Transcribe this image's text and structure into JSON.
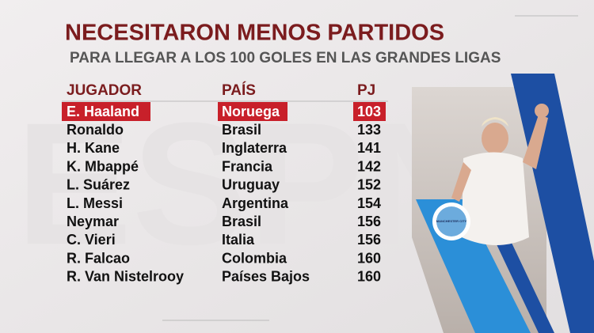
{
  "header": {
    "title": "NECESITARON MENOS PARTIDOS",
    "subtitle": "PARA LLEGAR A LOS 100 GOLES EN LAS GRANDES LIGAS"
  },
  "table": {
    "columns": [
      "JUGADOR",
      "PAÍS",
      "PJ"
    ],
    "rows": [
      [
        "E. Haaland",
        "Noruega",
        103
      ],
      [
        "Ronaldo",
        "Brasil",
        133
      ],
      [
        "H. Kane",
        "Inglaterra",
        141
      ],
      [
        "K. Mbappé",
        "Francia",
        142
      ],
      [
        "L. Suárez",
        "Uruguay",
        152
      ],
      [
        "L. Messi",
        "Argentina",
        154
      ],
      [
        "Neymar",
        "Brasil",
        156
      ],
      [
        "C. Vieri",
        "Italia",
        156
      ],
      [
        "R. Falcao",
        "Colombia",
        160
      ],
      [
        "R. Van Nistelrooy",
        "Países Bajos",
        160
      ]
    ]
  },
  "badge": {
    "text": "MANCHESTER CITY"
  }
}
